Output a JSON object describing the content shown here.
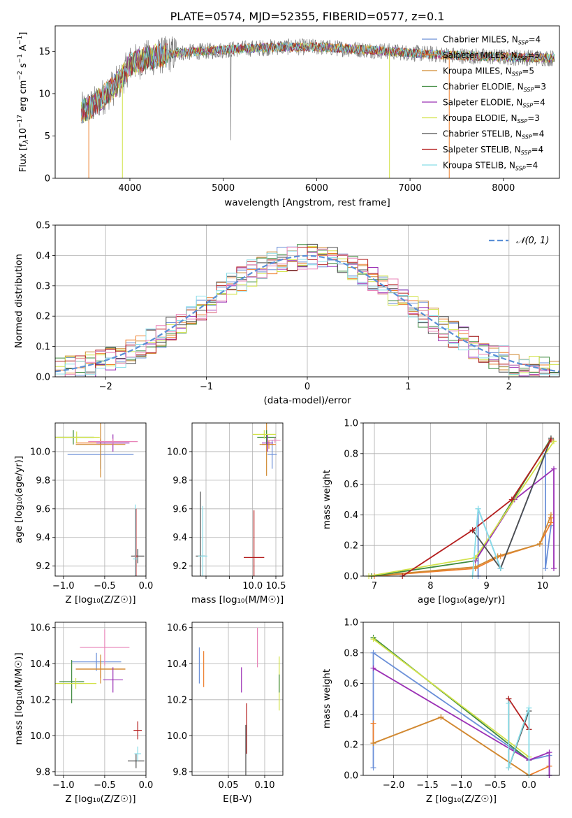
{
  "figure": {
    "title": "PLATE=0574, MJD=52355, FIBERID=0577, z=0.1"
  },
  "chart_data": [
    {
      "id": "spectrum",
      "type": "line",
      "xlabel": "wavelength [Angstrom, rest frame]",
      "ylabel_parts": [
        "Flux [f",
        "λ",
        "10",
        "−17",
        " erg cm",
        "−2",
        " s",
        "−1",
        " A",
        "−1",
        "]"
      ],
      "xlim": [
        3200,
        8600
      ],
      "ylim": [
        0,
        18
      ],
      "xticks": [
        4000,
        5000,
        6000,
        7000,
        8000
      ],
      "yticks": [
        0,
        5,
        10,
        15
      ],
      "grid": false,
      "legend_position": "right",
      "legend": [
        {
          "label": "Chabrier MILES",
          "nssp": "4",
          "color": "#6a8fd8"
        },
        {
          "label": "Salpeter MILES",
          "nssp": "5",
          "color": "#ee7f2d"
        },
        {
          "label": "Kroupa MILES",
          "nssp": "5",
          "color": "#d08a32"
        },
        {
          "label": "Chabrier ELODIE",
          "nssp": "3",
          "color": "#3e8a3e"
        },
        {
          "label": "Salpeter ELODIE",
          "nssp": "4",
          "color": "#9b30b5"
        },
        {
          "label": "Kroupa ELODIE",
          "nssp": "3",
          "color": "#d2e24a"
        },
        {
          "label": "Chabrier STELIB",
          "nssp": "4",
          "color": "#4d4d4d"
        },
        {
          "label": "Salpeter STELIB",
          "nssp": "4",
          "color": "#b51f1f"
        },
        {
          "label": "Kroupa STELIB",
          "nssp": "4",
          "color": "#88dde8"
        }
      ],
      "nssp_label": "N",
      "nssp_sub": "SSP",
      "continuum": [
        [
          3500,
          8.0
        ],
        [
          3600,
          8.5
        ],
        [
          3700,
          9.5
        ],
        [
          3800,
          10.5
        ],
        [
          3900,
          11.5
        ],
        [
          4000,
          13.5
        ],
        [
          4200,
          14.2
        ],
        [
          4500,
          14.8
        ],
        [
          4800,
          15.0
        ],
        [
          5200,
          15.3
        ],
        [
          5600,
          15.5
        ],
        [
          6000,
          15.5
        ],
        [
          6500,
          15.2
        ],
        [
          7000,
          14.8
        ],
        [
          7500,
          14.5
        ],
        [
          8000,
          14.3
        ],
        [
          8500,
          14.2
        ]
      ],
      "dropouts": [
        {
          "x": 3560,
          "color": "#ee7f2d"
        },
        {
          "x": 3920,
          "color": "#d2e24a"
        },
        {
          "x": 6780,
          "color": "#d2e24a"
        },
        {
          "x": 7420,
          "color": "#ee7f2d"
        }
      ]
    },
    {
      "id": "residuals",
      "type": "step-histogram",
      "xlabel": "(data-model)/error",
      "ylabel": "Normed distribution",
      "xlim": [
        -2.5,
        2.5
      ],
      "ylim": [
        0,
        0.5
      ],
      "xticks": [
        -2,
        -1,
        0,
        1,
        2
      ],
      "yticks": [
        0.0,
        0.1,
        0.2,
        0.3,
        0.4,
        0.5
      ],
      "grid": true,
      "legend_position": "top-right",
      "legend_label": "𝒩(0, 1)",
      "gauss_color": "#5a8fd6",
      "bin_width": 0.1,
      "series_colors": [
        "#6a8fd8",
        "#ee7f2d",
        "#d08a32",
        "#3e8a3e",
        "#9b30b5",
        "#d2e24a",
        "#4d4d4d",
        "#b51f1f",
        "#88dde8",
        "#e884b8"
      ]
    },
    {
      "id": "age-vs-Z",
      "type": "errorbar",
      "xlabel": "Z [log₁₀(Z/Z☉)]",
      "ylabel": "age  [log₁₀(age/yr)]",
      "xlim": [
        -1.1,
        0.0
      ],
      "ylim": [
        9.13,
        10.2
      ],
      "xticks": [
        -1.0,
        -0.5,
        0.0
      ],
      "yticks": [
        9.2,
        9.4,
        9.6,
        9.8,
        10.0
      ],
      "grid": true,
      "points": [
        {
          "x": -0.55,
          "y": 9.98,
          "xerr": 0.4,
          "yerr": 0.1,
          "color": "#6a8fd8"
        },
        {
          "x": -0.55,
          "y": 10.06,
          "xerr": 0.3,
          "yerr": 0.03,
          "color": "#ee7f2d"
        },
        {
          "x": -0.55,
          "y": 10.05,
          "xerr": 0.3,
          "yerr": 0.23,
          "color": "#d08a32"
        },
        {
          "x": -0.88,
          "y": 10.1,
          "xerr": 0.25,
          "yerr": 0.05,
          "color": "#3e8a3e"
        },
        {
          "x": -0.4,
          "y": 10.06,
          "xerr": 0.2,
          "yerr": 0.06,
          "color": "#9b30b5"
        },
        {
          "x": -0.84,
          "y": 10.1,
          "xerr": 0.28,
          "yerr": 0.04,
          "color": "#d2e24a"
        },
        {
          "x": -0.1,
          "y": 9.27,
          "xerr": 0.08,
          "yerr": 0.05,
          "color": "#4d4d4d"
        },
        {
          "x": -0.12,
          "y": 9.27,
          "xerr": 0.02,
          "yerr": 0.33,
          "color": "#b51f1f"
        },
        {
          "x": -0.13,
          "y": 9.25,
          "xerr": 0.03,
          "yerr": 0.38,
          "color": "#88dde8"
        },
        {
          "x": -0.4,
          "y": 10.07,
          "xerr": 0.3,
          "yerr": 0.02,
          "color": "#e884b8"
        }
      ]
    },
    {
      "id": "age-vs-mass",
      "type": "errorbar",
      "xlabel": "mass [log₁₀(M/M☉)]",
      "ylabel": "",
      "xlim": [
        8.7,
        10.65
      ],
      "ylim": [
        9.13,
        10.2
      ],
      "xticks": [
        9.0,
        9.5,
        10.0,
        10.5
      ],
      "xtick_labels": [
        "",
        "",
        "10.0",
        "10.5"
      ],
      "yticks": [
        9.2,
        9.4,
        9.6,
        9.8,
        10.0
      ],
      "grid": true,
      "points": [
        {
          "x": 10.42,
          "y": 9.98,
          "xerr": 0.1,
          "yerr": 0.1,
          "color": "#6a8fd8"
        },
        {
          "x": 10.35,
          "y": 10.05,
          "xerr": 0.15,
          "yerr": 0.03,
          "color": "#ee7f2d"
        },
        {
          "x": 10.3,
          "y": 10.05,
          "xerr": 0.15,
          "yerr": 0.22,
          "color": "#d08a32"
        },
        {
          "x": 10.3,
          "y": 10.1,
          "xerr": 0.2,
          "yerr": 0.05,
          "color": "#3e8a3e"
        },
        {
          "x": 10.32,
          "y": 10.06,
          "xerr": 0.12,
          "yerr": 0.06,
          "color": "#9b30b5"
        },
        {
          "x": 10.25,
          "y": 10.12,
          "xerr": 0.25,
          "yerr": 0.03,
          "color": "#d2e24a"
        },
        {
          "x": 8.88,
          "y": 9.27,
          "xerr": 0.1,
          "yerr": 0.45,
          "color": "#4d4d4d"
        },
        {
          "x": 10.03,
          "y": 9.26,
          "xerr": 0.22,
          "yerr": 0.33,
          "color": "#b51f1f"
        },
        {
          "x": 8.93,
          "y": 9.27,
          "xerr": 0.1,
          "yerr": 0.35,
          "color": "#88dde8"
        },
        {
          "x": 10.48,
          "y": 10.08,
          "xerr": 0.12,
          "yerr": 0.02,
          "color": "#e884b8"
        }
      ]
    },
    {
      "id": "massweight-vs-age",
      "type": "line",
      "xlabel": "age  [log₁₀(age/yr)]",
      "ylabel": "mass weight",
      "xlim": [
        6.8,
        10.3
      ],
      "ylim": [
        0,
        1.0
      ],
      "xticks": [
        7,
        8,
        9,
        10
      ],
      "yticks": [
        0.0,
        0.2,
        0.4,
        0.6,
        0.8,
        1.0
      ],
      "grid": true,
      "series": [
        {
          "color": "#6a8fd8",
          "x": [
            8.85,
            8.85,
            9.25,
            10.05,
            10.05,
            10.15
          ],
          "y": [
            0.0,
            0.44,
            0.05,
            0.8,
            0.05,
            0.33
          ]
        },
        {
          "color": "#ee7f2d",
          "x": [
            7.0,
            8.8,
            9.25,
            9.95,
            10.15,
            10.15
          ],
          "y": [
            0.0,
            0.05,
            0.13,
            0.21,
            0.35,
            0.38
          ]
        },
        {
          "color": "#d08a32",
          "x": [
            6.95,
            8.8,
            9.2,
            9.95,
            10.15
          ],
          "y": [
            0.0,
            0.06,
            0.13,
            0.21,
            0.4
          ]
        },
        {
          "color": "#3e8a3e",
          "x": [
            6.95,
            8.8,
            10.15
          ],
          "y": [
            0.0,
            0.1,
            0.9
          ]
        },
        {
          "color": "#9b30b5",
          "x": [
            8.8,
            9.5,
            10.2,
            10.2
          ],
          "y": [
            0.1,
            0.5,
            0.7,
            0.05
          ]
        },
        {
          "color": "#d2e24a",
          "x": [
            6.9,
            8.8,
            10.2
          ],
          "y": [
            0.0,
            0.12,
            0.88
          ]
        },
        {
          "color": "#4d4d4d",
          "x": [
            8.75,
            9.25,
            10.15
          ],
          "y": [
            0.3,
            0.05,
            0.9
          ]
        },
        {
          "color": "#b51f1f",
          "x": [
            7.5,
            8.75,
            9.45,
            10.15
          ],
          "y": [
            0.0,
            0.3,
            0.5,
            0.89
          ]
        },
        {
          "color": "#88dde8",
          "x": [
            8.75,
            8.85,
            9.25
          ],
          "y": [
            0.0,
            0.44,
            0.05
          ]
        }
      ]
    },
    {
      "id": "mass-vs-Z",
      "type": "errorbar",
      "xlabel": "Z [log₁₀(Z/Z☉)]",
      "ylabel": "mass [log₁₀(M/M☉)]",
      "xlim": [
        -1.1,
        0.0
      ],
      "ylim": [
        9.78,
        10.63
      ],
      "xticks": [
        -1.0,
        -0.5,
        0.0
      ],
      "yticks": [
        9.8,
        10.0,
        10.2,
        10.4,
        10.6
      ],
      "grid": true,
      "points": [
        {
          "x": -0.6,
          "y": 10.41,
          "xerr": 0.3,
          "yerr": 0.05,
          "color": "#6a8fd8"
        },
        {
          "x": -0.55,
          "y": 10.37,
          "xerr": 0.3,
          "yerr": 0.05,
          "color": "#ee7f2d"
        },
        {
          "x": -0.55,
          "y": 10.37,
          "xerr": 0.3,
          "yerr": 0.08,
          "color": "#d08a32"
        },
        {
          "x": -0.9,
          "y": 10.3,
          "xerr": 0.15,
          "yerr": 0.12,
          "color": "#3e8a3e"
        },
        {
          "x": -0.4,
          "y": 10.31,
          "xerr": 0.12,
          "yerr": 0.07,
          "color": "#9b30b5"
        },
        {
          "x": -0.85,
          "y": 10.29,
          "xerr": 0.25,
          "yerr": 0.03,
          "color": "#d2e24a"
        },
        {
          "x": -0.12,
          "y": 9.86,
          "xerr": 0.1,
          "yerr": 0.04,
          "color": "#4d4d4d"
        },
        {
          "x": -0.1,
          "y": 10.03,
          "xerr": 0.05,
          "yerr": 0.05,
          "color": "#b51f1f"
        },
        {
          "x": -0.1,
          "y": 9.9,
          "xerr": 0.04,
          "yerr": 0.04,
          "color": "#88dde8"
        },
        {
          "x": -0.5,
          "y": 10.49,
          "xerr": 0.3,
          "yerr": 0.1,
          "color": "#e884b8"
        }
      ]
    },
    {
      "id": "mass-vs-EBV",
      "type": "errorbar",
      "xlabel": "E(B-V)",
      "ylabel": "",
      "xlim": [
        0.0,
        0.125
      ],
      "ylim": [
        9.78,
        10.63
      ],
      "xticks": [
        0.05,
        0.1
      ],
      "yticks": [
        9.8,
        10.0,
        10.2,
        10.4,
        10.6
      ],
      "grid": true,
      "points": [
        {
          "x": 0.01,
          "y": 10.39,
          "xerr": 0.0,
          "yerr": 0.1,
          "color": "#6a8fd8"
        },
        {
          "x": 0.016,
          "y": 10.37,
          "xerr": 0.0,
          "yerr": 0.1,
          "color": "#ee7f2d"
        },
        {
          "x": 0.068,
          "y": 10.31,
          "xerr": 0.0,
          "yerr": 0.07,
          "color": "#9b30b5"
        },
        {
          "x": 0.12,
          "y": 10.29,
          "xerr": 0.0,
          "yerr": 0.15,
          "color": "#d2e24a"
        },
        {
          "x": 0.12,
          "y": 10.29,
          "xerr": 0.0,
          "yerr": 0.05,
          "color": "#3e8a3e"
        },
        {
          "x": 0.075,
          "y": 10.04,
          "xerr": 0.0,
          "yerr": 0.14,
          "color": "#b51f1f"
        },
        {
          "x": 0.074,
          "y": 9.9,
          "xerr": 0.0,
          "yerr": 0.16,
          "color": "#4d4d4d"
        },
        {
          "x": 0.09,
          "y": 10.49,
          "xerr": 0.0,
          "yerr": 0.11,
          "color": "#e884b8"
        }
      ]
    },
    {
      "id": "massweight-vs-Z",
      "type": "line",
      "xlabel": "Z [log₁₀(Z/Z☉)]",
      "ylabel": "mass weight",
      "xlim": [
        -2.45,
        0.45
      ],
      "ylim": [
        0,
        1.0
      ],
      "xticks": [
        -2.0,
        -1.5,
        -1.0,
        -0.5,
        0.0
      ],
      "yticks": [
        0.0,
        0.2,
        0.4,
        0.6,
        0.8,
        1.0
      ],
      "grid": true,
      "series": [
        {
          "color": "#6a8fd8",
          "x": [
            -2.3,
            -2.3,
            0.0,
            0.3,
            0.3
          ],
          "y": [
            0.05,
            0.8,
            0.1,
            0.13,
            0.0
          ]
        },
        {
          "color": "#ee7f2d",
          "x": [
            -2.3,
            -2.3,
            -1.3,
            0.0,
            0.3
          ],
          "y": [
            0.34,
            0.21,
            0.38,
            0.0,
            0.06
          ]
        },
        {
          "color": "#d08a32",
          "x": [
            -2.3,
            -1.3,
            0.0
          ],
          "y": [
            0.21,
            0.38,
            0.0
          ]
        },
        {
          "color": "#3e8a3e",
          "x": [
            -2.3,
            0.0
          ],
          "y": [
            0.9,
            0.1
          ]
        },
        {
          "color": "#9b30b5",
          "x": [
            -2.3,
            0.0,
            0.3,
            0.3
          ],
          "y": [
            0.7,
            0.1,
            0.15,
            0.0
          ]
        },
        {
          "color": "#d2e24a",
          "x": [
            -2.3,
            0.0
          ],
          "y": [
            0.89,
            0.12
          ]
        },
        {
          "color": "#4d4d4d",
          "x": [
            -0.3,
            -0.3,
            0.0,
            0.0
          ],
          "y": [
            0.5,
            0.05,
            0.42,
            0.3
          ]
        },
        {
          "color": "#b51f1f",
          "x": [
            -0.3,
            0.0
          ],
          "y": [
            0.5,
            0.3
          ]
        },
        {
          "color": "#88dde8",
          "x": [
            -0.3,
            -0.3,
            0.0,
            0.0
          ],
          "y": [
            0.47,
            0.05,
            0.44,
            0.0
          ]
        }
      ]
    }
  ]
}
